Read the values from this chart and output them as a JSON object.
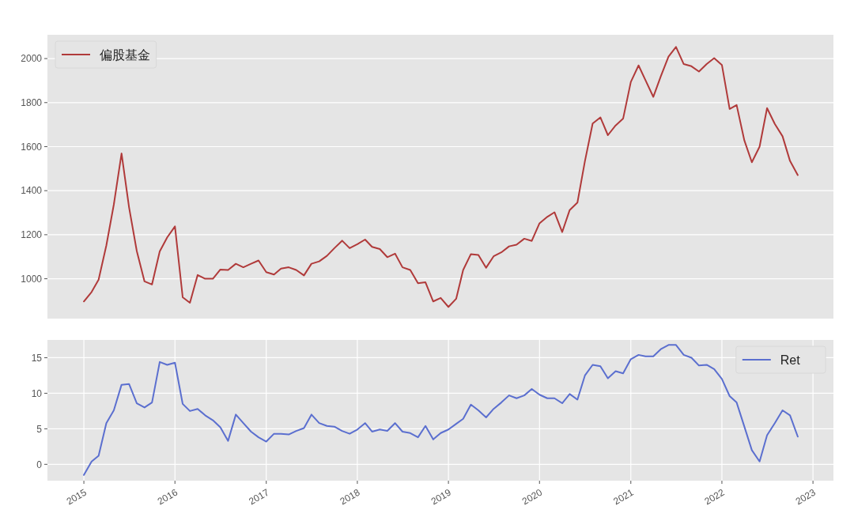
{
  "chart_data": [
    {
      "type": "line",
      "x": [
        "2015-01",
        "2015-02",
        "2015-03",
        "2015-04",
        "2015-05",
        "2015-06",
        "2015-07",
        "2015-08",
        "2015-09",
        "2015-10",
        "2015-11",
        "2015-12",
        "2016-01",
        "2016-02",
        "2016-03",
        "2016-04",
        "2016-05",
        "2016-06",
        "2016-07",
        "2016-08",
        "2016-09",
        "2016-10",
        "2016-11",
        "2016-12",
        "2017-01",
        "2017-02",
        "2017-03",
        "2017-04",
        "2017-05",
        "2017-06",
        "2017-07",
        "2017-08",
        "2017-09",
        "2017-10",
        "2017-11",
        "2017-12",
        "2018-01",
        "2018-02",
        "2018-03",
        "2018-04",
        "2018-05",
        "2018-06",
        "2018-07",
        "2018-08",
        "2018-09",
        "2018-10",
        "2018-11",
        "2018-12",
        "2019-01",
        "2019-02",
        "2019-03",
        "2019-04",
        "2019-05",
        "2019-06",
        "2019-07",
        "2019-08",
        "2019-09",
        "2019-10",
        "2019-11",
        "2019-12",
        "2020-01",
        "2020-02",
        "2020-03",
        "2020-04",
        "2020-05",
        "2020-06",
        "2020-07",
        "2020-08",
        "2020-09",
        "2020-10",
        "2020-11",
        "2020-12",
        "2021-01",
        "2021-02",
        "2021-03",
        "2021-04",
        "2021-05",
        "2021-06",
        "2021-07",
        "2021-08",
        "2021-09",
        "2021-10",
        "2021-11",
        "2021-12",
        "2022-01",
        "2022-02",
        "2022-03",
        "2022-04",
        "2022-05",
        "2022-06",
        "2022-07",
        "2022-08",
        "2022-09",
        "2022-10",
        "2022-11"
      ],
      "series": [
        {
          "name": "偏股基金",
          "color": "#b03a3a",
          "values": [
            897,
            940,
            996,
            1151,
            1337,
            1569,
            1325,
            1126,
            988,
            974,
            1124,
            1188,
            1238,
            916,
            891,
            1017,
            1000,
            1000,
            1042,
            1040,
            1068,
            1052,
            1068,
            1083,
            1030,
            1019,
            1046,
            1052,
            1040,
            1015,
            1068,
            1079,
            1104,
            1139,
            1173,
            1139,
            1157,
            1178,
            1145,
            1135,
            1098,
            1114,
            1052,
            1040,
            980,
            984,
            897,
            913,
            872,
            909,
            1040,
            1112,
            1108,
            1050,
            1102,
            1120,
            1147,
            1155,
            1182,
            1172,
            1252,
            1281,
            1302,
            1212,
            1312,
            1346,
            1534,
            1705,
            1733,
            1652,
            1696,
            1727,
            1894,
            1969,
            1901,
            1826,
            1919,
            2009,
            2053,
            1975,
            1965,
            1941,
            1975,
            2002,
            1971,
            1771,
            1789,
            1628,
            1529,
            1600,
            1775,
            1703,
            1647,
            1535,
            1471
          ]
        }
      ],
      "xlim": [
        "2014-08-08",
        "2023-03-24"
      ],
      "ylim": [
        819,
        2108
      ],
      "yticks": [
        1000,
        1200,
        1400,
        1600,
        1800,
        2000
      ],
      "grid": "y",
      "legend": "top left",
      "tick_labels": "y"
    },
    {
      "type": "line",
      "x": [
        "2015-01",
        "2015-02",
        "2015-03",
        "2015-04",
        "2015-05",
        "2015-06",
        "2015-07",
        "2015-08",
        "2015-09",
        "2015-10",
        "2015-11",
        "2015-12",
        "2016-01",
        "2016-02",
        "2016-03",
        "2016-04",
        "2016-05",
        "2016-06",
        "2016-07",
        "2016-08",
        "2016-09",
        "2016-10",
        "2016-11",
        "2016-12",
        "2017-01",
        "2017-02",
        "2017-03",
        "2017-04",
        "2017-05",
        "2017-06",
        "2017-07",
        "2017-08",
        "2017-09",
        "2017-10",
        "2017-11",
        "2017-12",
        "2018-01",
        "2018-02",
        "2018-03",
        "2018-04",
        "2018-05",
        "2018-06",
        "2018-07",
        "2018-08",
        "2018-09",
        "2018-10",
        "2018-11",
        "2018-12",
        "2019-01",
        "2019-02",
        "2019-03",
        "2019-04",
        "2019-05",
        "2019-06",
        "2019-07",
        "2019-08",
        "2019-09",
        "2019-10",
        "2019-11",
        "2019-12",
        "2020-01",
        "2020-02",
        "2020-03",
        "2020-04",
        "2020-05",
        "2020-06",
        "2020-07",
        "2020-08",
        "2020-09",
        "2020-10",
        "2020-11",
        "2020-12",
        "2021-01",
        "2021-02",
        "2021-03",
        "2021-04",
        "2021-05",
        "2021-06",
        "2021-07",
        "2021-08",
        "2021-09",
        "2021-10",
        "2021-11",
        "2021-12",
        "2022-01",
        "2022-02",
        "2022-03",
        "2022-04",
        "2022-05",
        "2022-06",
        "2022-07",
        "2022-08",
        "2022-09",
        "2022-10",
        "2022-11"
      ],
      "series": [
        {
          "name": "Ret",
          "color": "#5b6fcf",
          "values": [
            -1.5,
            0.4,
            1.2,
            5.8,
            7.6,
            11.2,
            11.3,
            8.6,
            8.0,
            8.7,
            14.4,
            14.0,
            14.3,
            8.5,
            7.5,
            7.8,
            6.9,
            6.2,
            5.2,
            3.3,
            7.0,
            5.8,
            4.6,
            3.8,
            3.2,
            4.3,
            4.3,
            4.2,
            4.7,
            5.1,
            7.0,
            5.8,
            5.4,
            5.3,
            4.7,
            4.3,
            4.9,
            5.8,
            4.6,
            4.9,
            4.7,
            5.8,
            4.6,
            4.4,
            3.8,
            5.4,
            3.5,
            4.4,
            4.9,
            5.7,
            6.4,
            8.4,
            7.6,
            6.6,
            7.8,
            8.7,
            9.7,
            9.3,
            9.7,
            10.6,
            9.8,
            9.3,
            9.3,
            8.6,
            9.9,
            9.1,
            12.5,
            14.0,
            13.8,
            12.1,
            13.1,
            12.8,
            14.8,
            15.4,
            15.2,
            15.2,
            16.2,
            16.8,
            16.8,
            15.4,
            15.0,
            13.9,
            14.0,
            13.4,
            12.0,
            9.6,
            8.7,
            5.3,
            2.0,
            0.4,
            4.1,
            5.8,
            7.6,
            6.9,
            3.9
          ]
        }
      ],
      "xlim": [
        "2014-08-08",
        "2023-03-24"
      ],
      "ylim": [
        -2.3,
        17.5
      ],
      "yticks": [
        0,
        5,
        10,
        15
      ],
      "xticks": [
        "2015",
        "2016",
        "2017",
        "2018",
        "2019",
        "2020",
        "2021",
        "2022",
        "2023"
      ],
      "grid": true,
      "legend": "top right"
    }
  ]
}
